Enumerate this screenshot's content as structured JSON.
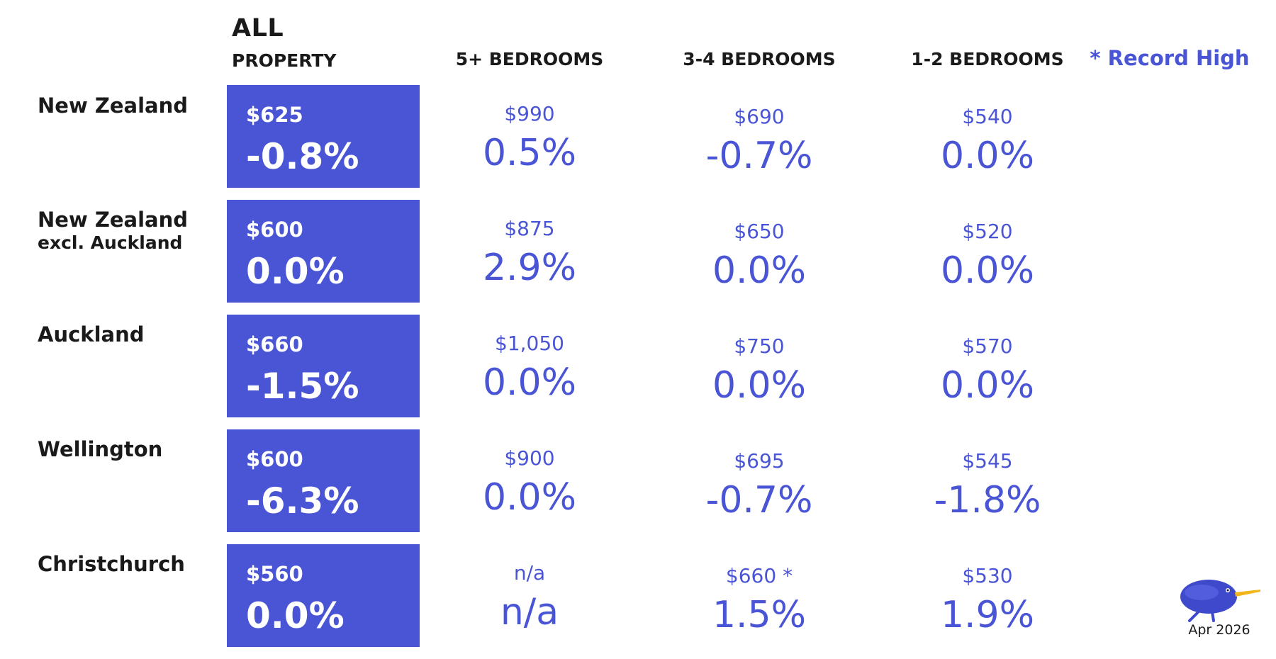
{
  "headers": {
    "all_line1": "ALL",
    "all_line2": "PROPERTY",
    "col_5plus": "5+ BEDROOMS",
    "col_34": "3-4 BEDROOMS",
    "col_12": "1-2 BEDROOMS",
    "record_high": "* Record High"
  },
  "rows": [
    {
      "label": "New Zealand",
      "sublabel": "",
      "all": {
        "price": "$625",
        "pct": "-0.8%"
      },
      "b5": {
        "price": "$990",
        "pct": "0.5%"
      },
      "b34": {
        "price": "$690",
        "pct": "-0.7%"
      },
      "b12": {
        "price": "$540",
        "pct": "0.0%"
      }
    },
    {
      "label": "New Zealand",
      "sublabel": "excl. Auckland",
      "all": {
        "price": "$600",
        "pct": "0.0%"
      },
      "b5": {
        "price": "$875",
        "pct": "2.9%"
      },
      "b34": {
        "price": "$650",
        "pct": "0.0%"
      },
      "b12": {
        "price": "$520",
        "pct": "0.0%"
      }
    },
    {
      "label": "Auckland",
      "sublabel": "",
      "all": {
        "price": "$660",
        "pct": "-1.5%"
      },
      "b5": {
        "price": "$1,050",
        "pct": "0.0%"
      },
      "b34": {
        "price": "$750",
        "pct": "0.0%"
      },
      "b12": {
        "price": "$570",
        "pct": "0.0%"
      }
    },
    {
      "label": "Wellington",
      "sublabel": "",
      "all": {
        "price": "$600",
        "pct": "-6.3%"
      },
      "b5": {
        "price": "$900",
        "pct": "0.0%"
      },
      "b34": {
        "price": "$695",
        "pct": "-0.7%"
      },
      "b12": {
        "price": "$545",
        "pct": "-1.8%"
      }
    },
    {
      "label": "Christchurch",
      "sublabel": "",
      "all": {
        "price": "$560",
        "pct": "0.0%"
      },
      "b5": {
        "price": "n/a",
        "pct": "n/a"
      },
      "b34": {
        "price": "$660 *",
        "pct": "1.5%"
      },
      "b12": {
        "price": "$530",
        "pct": "1.9%"
      }
    }
  ],
  "footer": {
    "logo_icon": "kiwi-bird-icon",
    "date": "Apr 2026"
  },
  "colors": {
    "accent": "#4a55d6",
    "text": "#1a1a1a"
  }
}
